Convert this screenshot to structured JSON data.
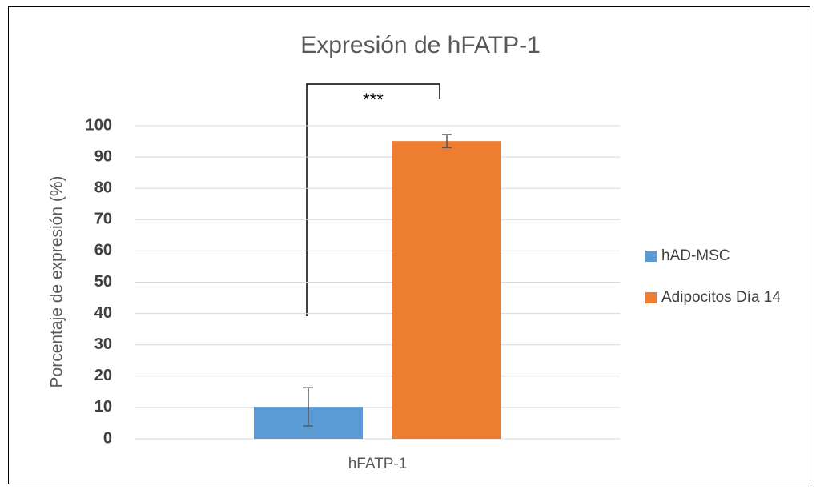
{
  "chart_data": {
    "type": "bar",
    "title": "Expresión de hFATP-1",
    "y_label": "Porcentaje de expresión (%)",
    "categories": [
      "hFATP-1"
    ],
    "series": [
      {
        "name": "hAD-MSC",
        "color": "#5b9bd5",
        "values": [
          10.2
        ],
        "errors": [
          6.1
        ]
      },
      {
        "name": "Adipocitos Día 14",
        "color": "#ed7d31",
        "values": [
          95.1
        ],
        "errors": [
          2.1
        ]
      }
    ],
    "annotation": "***",
    "ylim": [
      0,
      100
    ],
    "yticks": [
      0,
      10,
      20,
      30,
      40,
      50,
      60,
      70,
      80,
      90,
      100
    ],
    "grid": true,
    "legend": "right"
  }
}
